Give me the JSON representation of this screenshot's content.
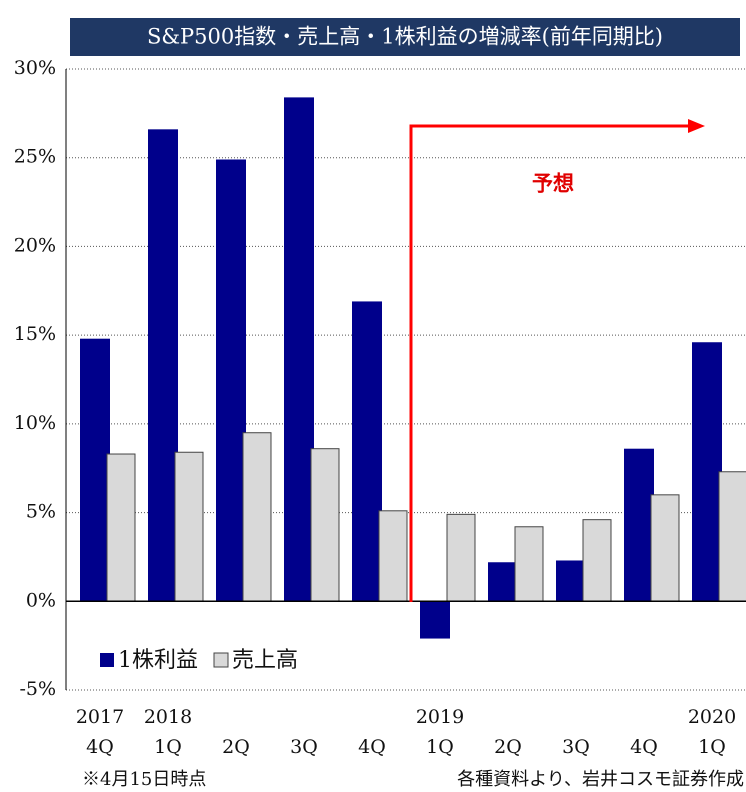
{
  "chart_data": {
    "type": "bar",
    "title": "S&P500指数・売上高・1株利益の増減率(前年同期比)",
    "categories": [
      "4Q",
      "1Q",
      "2Q",
      "3Q",
      "4Q",
      "1Q",
      "2Q",
      "3Q",
      "4Q",
      "1Q"
    ],
    "years": [
      "2017",
      "2018",
      null,
      null,
      null,
      "2019",
      null,
      null,
      null,
      "2020"
    ],
    "series": [
      {
        "name": "1株利益",
        "color": "#00008b",
        "values": [
          14.8,
          26.6,
          24.9,
          28.4,
          16.9,
          -2.1,
          2.2,
          2.3,
          8.6,
          14.6
        ]
      },
      {
        "name": "売上高",
        "color": "#d9d9d9",
        "values": [
          8.3,
          8.4,
          9.5,
          8.6,
          5.1,
          4.9,
          4.2,
          4.6,
          6.0,
          7.3
        ]
      }
    ],
    "ylim": [
      -5,
      30
    ],
    "yticks": [
      {
        "value": -5,
        "label": "-5%"
      },
      {
        "value": 0,
        "label": "0%"
      },
      {
        "value": 5,
        "label": "5%"
      },
      {
        "value": 10,
        "label": "10%"
      },
      {
        "value": 15,
        "label": "15%"
      },
      {
        "value": 20,
        "label": "20%"
      },
      {
        "value": 25,
        "label": "25%"
      },
      {
        "value": 30,
        "label": "30%"
      }
    ],
    "grid": true,
    "annotations": [
      "予想"
    ],
    "notes": [
      "※4月15日時点",
      "各種資料より、岩井コスモ証券作成"
    ]
  }
}
